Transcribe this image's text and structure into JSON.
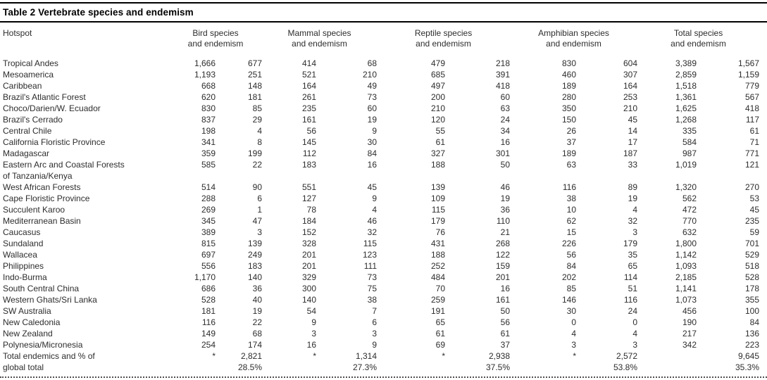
{
  "page": {
    "background": "#ffffff",
    "text_color": "#2d2d2d",
    "rule_color": "#000000"
  },
  "table": {
    "title": "Table 2 Vertebrate species and endemism",
    "columns": {
      "hotspot": "Hotspot",
      "groups": [
        {
          "line1": "Bird species",
          "line2": "and endemism"
        },
        {
          "line1": "Mammal species",
          "line2": "and endemism"
        },
        {
          "line1": "Reptile species",
          "line2": "and endemism"
        },
        {
          "line1": "Amphibian species",
          "line2": "and endemism"
        },
        {
          "line1": "Total species",
          "line2": "and endemism"
        }
      ]
    },
    "rows": [
      {
        "name": "Tropical Andes",
        "v": [
          "1,666",
          "677",
          "414",
          "68",
          "479",
          "218",
          "830",
          "604",
          "3,389",
          "1,567"
        ]
      },
      {
        "name": "Mesoamerica",
        "v": [
          "1,193",
          "251",
          "521",
          "210",
          "685",
          "391",
          "460",
          "307",
          "2,859",
          "1,159"
        ]
      },
      {
        "name": "Caribbean",
        "v": [
          "668",
          "148",
          "164",
          "49",
          "497",
          "418",
          "189",
          "164",
          "1,518",
          "779"
        ]
      },
      {
        "name": "Brazil's Atlantic Forest",
        "v": [
          "620",
          "181",
          "261",
          "73",
          "200",
          "60",
          "280",
          "253",
          "1,361",
          "567"
        ]
      },
      {
        "name": "Choco/Darien/W. Ecuador",
        "v": [
          "830",
          "85",
          "235",
          "60",
          "210",
          "63",
          "350",
          "210",
          "1,625",
          "418"
        ]
      },
      {
        "name": "Brazil's Cerrado",
        "v": [
          "837",
          "29",
          "161",
          "19",
          "120",
          "24",
          "150",
          "45",
          "1,268",
          "117"
        ]
      },
      {
        "name": "Central Chile",
        "v": [
          "198",
          "4",
          "56",
          "9",
          "55",
          "34",
          "26",
          "14",
          "335",
          "61"
        ]
      },
      {
        "name": "California Floristic Province",
        "v": [
          "341",
          "8",
          "145",
          "30",
          "61",
          "16",
          "37",
          "17",
          "584",
          "71"
        ]
      },
      {
        "name": "Madagascar",
        "v": [
          "359",
          "199",
          "112",
          "84",
          "327",
          "301",
          "189",
          "187",
          "987",
          "771"
        ]
      },
      {
        "name": "Eastern Arc and Coastal Forests",
        "name2": "of Tanzania/Kenya",
        "v": [
          "585",
          "22",
          "183",
          "16",
          "188",
          "50",
          "63",
          "33",
          "1,019",
          "121"
        ]
      },
      {
        "name": "West African Forests",
        "v": [
          "514",
          "90",
          "551",
          "45",
          "139",
          "46",
          "116",
          "89",
          "1,320",
          "270"
        ]
      },
      {
        "name": "Cape Floristic Province",
        "v": [
          "288",
          "6",
          "127",
          "9",
          "109",
          "19",
          "38",
          "19",
          "562",
          "53"
        ]
      },
      {
        "name": "Succulent Karoo",
        "v": [
          "269",
          "1",
          "78",
          "4",
          "115",
          "36",
          "10",
          "4",
          "472",
          "45"
        ]
      },
      {
        "name": "Mediterranean Basin",
        "v": [
          "345",
          "47",
          "184",
          "46",
          "179",
          "110",
          "62",
          "32",
          "770",
          "235"
        ]
      },
      {
        "name": "Caucasus",
        "v": [
          "389",
          "3",
          "152",
          "32",
          "76",
          "21",
          "15",
          "3",
          "632",
          "59"
        ]
      },
      {
        "name": "Sundaland",
        "v": [
          "815",
          "139",
          "328",
          "115",
          "431",
          "268",
          "226",
          "179",
          "1,800",
          "701"
        ]
      },
      {
        "name": "Wallacea",
        "v": [
          "697",
          "249",
          "201",
          "123",
          "188",
          "122",
          "56",
          "35",
          "1,142",
          "529"
        ]
      },
      {
        "name": "Philippines",
        "v": [
          "556",
          "183",
          "201",
          "111",
          "252",
          "159",
          "84",
          "65",
          "1,093",
          "518"
        ]
      },
      {
        "name": "Indo-Burma",
        "v": [
          "1,170",
          "140",
          "329",
          "73",
          "484",
          "201",
          "202",
          "114",
          "2,185",
          "528"
        ]
      },
      {
        "name": "South Central China",
        "v": [
          "686",
          "36",
          "300",
          "75",
          "70",
          "16",
          "85",
          "51",
          "1,141",
          "178"
        ]
      },
      {
        "name": "Western Ghats/Sri Lanka",
        "v": [
          "528",
          "40",
          "140",
          "38",
          "259",
          "161",
          "146",
          "116",
          "1,073",
          "355"
        ]
      },
      {
        "name": "SW Australia",
        "v": [
          "181",
          "19",
          "54",
          "7",
          "191",
          "50",
          "30",
          "24",
          "456",
          "100"
        ]
      },
      {
        "name": "New Caledonia",
        "v": [
          "116",
          "22",
          "9",
          "6",
          "65",
          "56",
          "0",
          "0",
          "190",
          "84"
        ]
      },
      {
        "name": "New Zealand",
        "v": [
          "149",
          "68",
          "3",
          "3",
          "61",
          "61",
          "4",
          "4",
          "217",
          "136"
        ]
      },
      {
        "name": "Polynesia/Micronesia",
        "v": [
          "254",
          "174",
          "16",
          "9",
          "69",
          "37",
          "3",
          "3",
          "342",
          "223"
        ]
      },
      {
        "name": "Total endemics and % of",
        "name2": "global total",
        "is_total": true,
        "v": [
          "*",
          "2,821",
          "*",
          "1,314",
          "*",
          "2,938",
          "*",
          "2,572",
          "",
          "9,645"
        ],
        "v2": [
          "",
          "28.5%",
          "",
          "27.3%",
          "",
          "37.5%",
          "",
          "53.8%",
          "",
          "35.3%"
        ]
      }
    ]
  }
}
